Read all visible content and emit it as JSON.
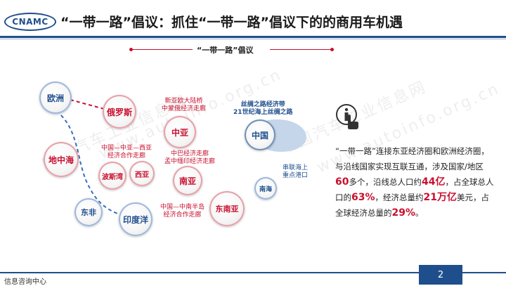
{
  "header": {
    "logo_text": "CNAMC",
    "title": "“一带一路”倡议：抓住“一带一路”倡议下的的商用车机遇"
  },
  "section": {
    "heading": "“一带一路”倡议"
  },
  "watermarks": [
    "中国汽车工业信息网",
    "www.autoinfo.org.cn",
    "中国汽车工业信息网",
    "www.autoinfo.org.cn"
  ],
  "map": {
    "regions": {
      "europe": "欧洲",
      "russia": "俄罗斯",
      "central_asia": "中亚",
      "mediterranean": "地中海",
      "persian_gulf": "波斯湾",
      "west_asia": "西亚",
      "south_asia": "南亚",
      "china": "中国",
      "southeast_asia": "东南亚",
      "east_africa": "东非",
      "indian_ocean": "印度洋",
      "south_china_sea": "南海"
    },
    "corridors": {
      "new_eurasia": "新亚欧大陆桥",
      "cmr": "中蒙俄经济走廊",
      "ccwa_1": "中国—中亚—西亚",
      "ccwa_2": "经济合作走廊",
      "cpec_1": "中巴经济走廊",
      "cpec_2": "孟中缅印经济走廊",
      "icp_1": "中国—中南半岛",
      "icp_2": "经济合作走廊",
      "silk_belt": "丝绸之路经济带",
      "maritime": "21世纪海上丝绸之路",
      "ports_1": "串联海上",
      "ports_2": "重点港口"
    }
  },
  "description": {
    "p1": "“一带一路”连接东亚经济圈和欧洲经济圈，与沿线国家实现互联互通，涉及国家/地区",
    "countries": "60",
    "p2": "多个，沿线总人口约",
    "population": "44亿",
    "p3": "，占全球总人口的",
    "pop_share": "63%",
    "p4": "，经济总量约",
    "economy": "21万亿",
    "p5": "美元，占全球经济总量的",
    "econ_share": "29%",
    "p6": "。"
  },
  "footer": {
    "left_text": "信息咨询中心",
    "page_number": "2"
  },
  "colors": {
    "brand_blue": "#1f4e8c",
    "accent_red": "#c8102e"
  }
}
